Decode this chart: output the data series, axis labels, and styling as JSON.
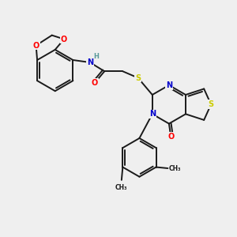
{
  "background_color": "#efefef",
  "bond_color": "#1a1a1a",
  "atom_colors": {
    "O": "#ff0000",
    "N": "#0000cc",
    "S": "#cccc00",
    "H": "#5a9a9a",
    "C": "#1a1a1a"
  },
  "figsize": [
    3.0,
    3.0
  ],
  "dpi": 100,
  "xlim": [
    0,
    10
  ],
  "ylim": [
    0,
    10
  ]
}
